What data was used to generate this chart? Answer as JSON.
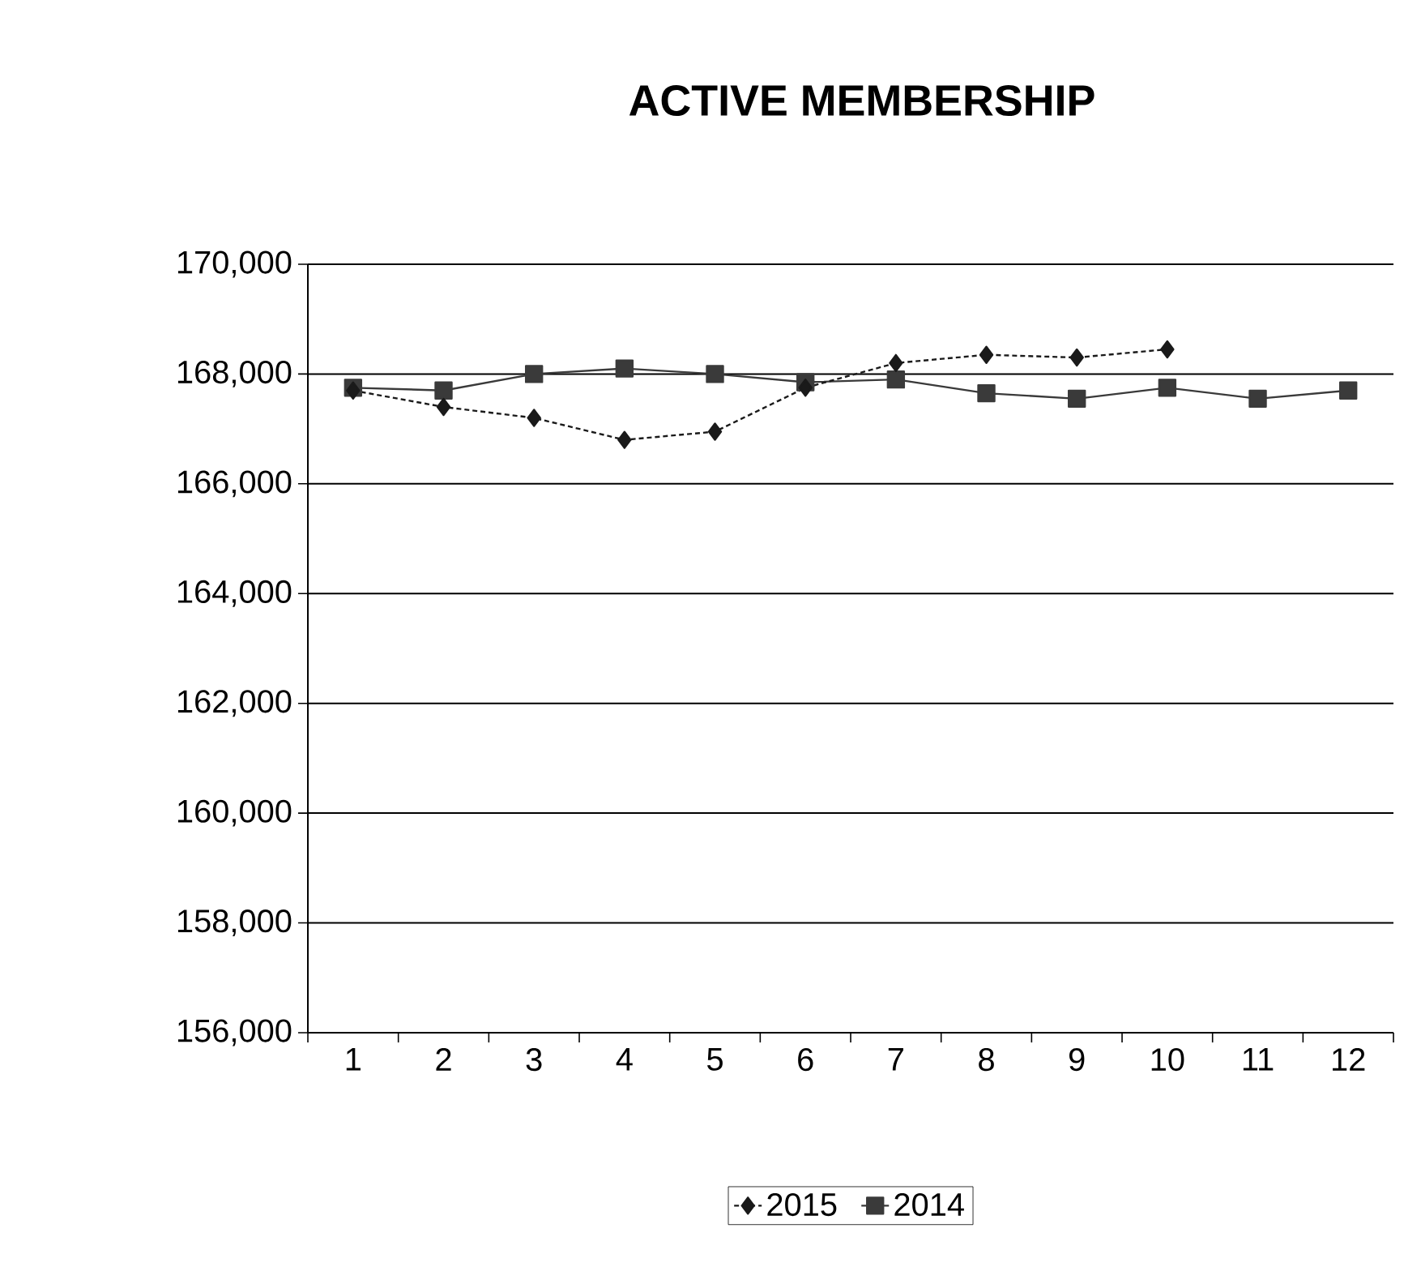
{
  "chart_data": {
    "type": "line",
    "title": "ACTIVE MEMBERSHIP",
    "categories": [
      "1",
      "2",
      "3",
      "4",
      "5",
      "6",
      "7",
      "8",
      "9",
      "10",
      "11",
      "12"
    ],
    "series": [
      {
        "name": "2015",
        "color": "#1a1a1a",
        "marker": "diamond",
        "line_style": "dashed",
        "values": [
          167700,
          167400,
          167200,
          166800,
          166950,
          167750,
          168200,
          168350,
          168300,
          168450,
          null,
          null
        ]
      },
      {
        "name": "2014",
        "color": "#3a3a3a",
        "marker": "square",
        "line_style": "solid",
        "values": [
          167750,
          167700,
          168000,
          168100,
          168000,
          167850,
          167900,
          167650,
          167550,
          167750,
          167550,
          167700
        ]
      }
    ],
    "ylim": [
      156000,
      170000
    ],
    "yticks": [
      {
        "value": 156000,
        "label": "156,000"
      },
      {
        "value": 158000,
        "label": "158,000"
      },
      {
        "value": 160000,
        "label": "160,000"
      },
      {
        "value": 162000,
        "label": "162,000"
      },
      {
        "value": 164000,
        "label": "164,000"
      },
      {
        "value": 166000,
        "label": "166,000"
      },
      {
        "value": 168000,
        "label": "168,000"
      },
      {
        "value": 170000,
        "label": "170,000"
      }
    ],
    "grid": "y",
    "legend": "bottom"
  }
}
